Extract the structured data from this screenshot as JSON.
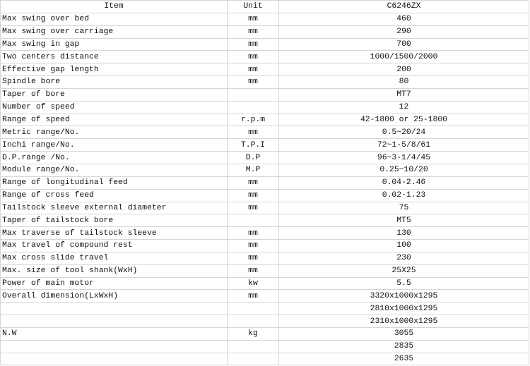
{
  "header": {
    "item": "Item",
    "unit": "Unit",
    "model": "C6246ZX"
  },
  "rows": [
    {
      "item": "Max swing over bed",
      "unit": "mm",
      "value": "460"
    },
    {
      "item": "Max swing over carriage",
      "unit": "mm",
      "value": "290"
    },
    {
      "item": "Max swing in gap",
      "unit": "mm",
      "value": "700"
    },
    {
      "item": "Two centers distance",
      "unit": "mm",
      "value": "1000/1500/2000"
    },
    {
      "item": "Effective gap length",
      "unit": "mm",
      "value": "200"
    },
    {
      "item": "Spindle bore",
      "unit": "mm",
      "value": "80"
    },
    {
      "item": "Taper of bore",
      "unit": "",
      "value": "MT7"
    },
    {
      "item": "Number of speed",
      "unit": "",
      "value": "12"
    },
    {
      "item": "Range of speed",
      "unit": "r.p.m",
      "value": "42-1800 or 25-1800"
    },
    {
      "item": "Metric range/No.",
      "unit": "mm",
      "value": "0.5~20/24"
    },
    {
      "item": "Inchi range/No.",
      "unit": "T.P.I",
      "value": "72~1-5/8/61"
    },
    {
      "item": "D.P.range /No.",
      "unit": "D.P",
      "value": "96~3-1/4/45"
    },
    {
      "item": "Module range/No.",
      "unit": "M.P",
      "value": "0.25~10/20"
    },
    {
      "item": "Range of longitudinal feed",
      "unit": "mm",
      "value": "0.04-2.46"
    },
    {
      "item": "Range of cross feed",
      "unit": "mm",
      "value": "0.02-1.23"
    },
    {
      "item": "Tailstock sleeve external diameter",
      "unit": "mm",
      "value": "75"
    },
    {
      "item": "Taper of tailstock bore",
      "unit": "",
      "value": "MT5"
    },
    {
      "item": "Max traverse of tailstock sleeve",
      "unit": "mm",
      "value": "130"
    },
    {
      "item": "Max travel of compound rest",
      "unit": "mm",
      "value": "100"
    },
    {
      "item": "Max cross slide travel",
      "unit": "mm",
      "value": "230"
    },
    {
      "item": "Max. size of tool shank(WxH)",
      "unit": "mm",
      "value": "25X25"
    },
    {
      "item": "Power of main motor",
      "unit": "kw",
      "value": "5.5"
    },
    {
      "item": "Overall dimension(LxWxH)",
      "unit": "mm",
      "value": "3320x1000x1295"
    },
    {
      "item": "",
      "unit": "",
      "value": "2810x1000x1295"
    },
    {
      "item": "",
      "unit": "",
      "value": "2310x1000x1295"
    },
    {
      "item": "N.W",
      "unit": "kg",
      "value": "3055"
    },
    {
      "item": "",
      "unit": "",
      "value": "2835"
    },
    {
      "item": "",
      "unit": "",
      "value": "2635"
    }
  ]
}
